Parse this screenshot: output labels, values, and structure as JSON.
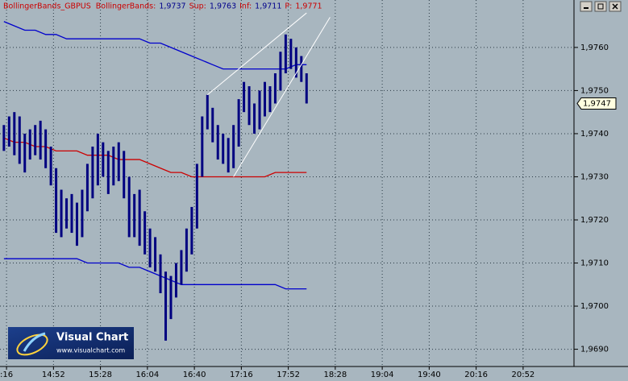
{
  "chart_data": {
    "type": "range-bar",
    "header": [
      {
        "text": "BollingerBands_GBPUS",
        "color": "#cc0000"
      },
      {
        "text": "BollingerBands:",
        "color": "#cc0000"
      },
      {
        "text": "1,9737",
        "color": "#00008b"
      },
      {
        "text": "Sup:",
        "color": "#cc0000"
      },
      {
        "text": "1,9763",
        "color": "#00008b"
      },
      {
        "text": "Inf:",
        "color": "#cc0000"
      },
      {
        "text": "1,9711",
        "color": "#00008b"
      },
      {
        "text": "P:",
        "color": "#cc0000"
      },
      {
        "text": "1,9771",
        "color": "#cc0000"
      }
    ],
    "logo": {
      "title": "Visual Chart",
      "url": "www.visualchart.com"
    },
    "color": "#000080",
    "x": [
      854,
      858,
      862,
      866,
      870,
      874,
      878,
      882,
      886,
      890,
      894,
      898,
      902,
      906,
      910,
      914,
      918,
      922,
      926,
      930,
      934,
      938,
      942,
      946,
      950,
      954,
      958,
      962,
      966,
      970,
      974,
      978,
      982,
      986,
      990,
      994,
      998,
      1002,
      1006,
      1010,
      1014,
      1018,
      1022,
      1026,
      1030,
      1034,
      1038,
      1042,
      1046,
      1050,
      1054,
      1058,
      1062,
      1066,
      1070,
      1074,
      1078,
      1082,
      1086
    ],
    "high": [
      1.9742,
      1.9744,
      1.9745,
      1.9744,
      1.974,
      1.9741,
      1.9742,
      1.9743,
      1.9741,
      1.9737,
      1.9732,
      1.9727,
      1.9725,
      1.9726,
      1.9724,
      1.9727,
      1.9733,
      1.9737,
      1.974,
      1.9738,
      1.9736,
      1.9737,
      1.9738,
      1.9736,
      1.973,
      1.9726,
      1.9727,
      1.9722,
      1.9718,
      1.9716,
      1.9712,
      1.9708,
      1.9707,
      1.971,
      1.9713,
      1.9718,
      1.9723,
      1.9733,
      1.9744,
      1.9749,
      1.9746,
      1.9742,
      1.974,
      1.9739,
      1.9742,
      1.9748,
      1.9752,
      1.9751,
      1.9747,
      1.975,
      1.9752,
      1.9751,
      1.9754,
      1.9759,
      1.9763,
      1.9762,
      1.976,
      1.9758,
      1.9754
    ],
    "low": [
      1.9736,
      1.9737,
      1.9735,
      1.9733,
      1.9731,
      1.9734,
      1.9735,
      1.9734,
      1.9732,
      1.9728,
      1.9717,
      1.9716,
      1.9718,
      1.9717,
      1.9714,
      1.9716,
      1.9722,
      1.9725,
      1.9728,
      1.973,
      1.9726,
      1.9728,
      1.9729,
      1.9725,
      1.9716,
      1.9716,
      1.9714,
      1.9712,
      1.9709,
      1.9708,
      1.9703,
      1.9692,
      1.9697,
      1.9702,
      1.9705,
      1.9708,
      1.9712,
      1.9718,
      1.973,
      1.9741,
      1.9738,
      1.9734,
      1.9733,
      1.9731,
      1.9732,
      1.9737,
      1.9745,
      1.9742,
      1.974,
      1.9741,
      1.9744,
      1.9745,
      1.9747,
      1.975,
      1.9754,
      1.9755,
      1.9753,
      1.9752,
      1.9747
    ],
    "bands": {
      "x": [
        854,
        862,
        870,
        878,
        886,
        894,
        902,
        910,
        918,
        926,
        934,
        942,
        950,
        958,
        966,
        974,
        982,
        990,
        998,
        1006,
        1014,
        1022,
        1030,
        1038,
        1046,
        1054,
        1062,
        1070,
        1078,
        1086
      ],
      "upper": [
        1.9766,
        1.9765,
        1.9764,
        1.9764,
        1.9763,
        1.9763,
        1.9762,
        1.9762,
        1.9762,
        1.9762,
        1.9762,
        1.9762,
        1.9762,
        1.9762,
        1.9761,
        1.9761,
        1.976,
        1.9759,
        1.9758,
        1.9757,
        1.9756,
        1.9755,
        1.9755,
        1.9755,
        1.9755,
        1.9755,
        1.9755,
        1.9755,
        1.9756,
        1.9756
      ],
      "middle": [
        1.9739,
        1.9738,
        1.9738,
        1.9737,
        1.9737,
        1.9736,
        1.9736,
        1.9736,
        1.9735,
        1.9735,
        1.9735,
        1.9734,
        1.9734,
        1.9734,
        1.9733,
        1.9732,
        1.9731,
        1.9731,
        1.973,
        1.973,
        1.973,
        1.973,
        1.973,
        1.973,
        1.973,
        1.973,
        1.9731,
        1.9731,
        1.9731,
        1.9731
      ],
      "lower": [
        1.9711,
        1.9711,
        1.9711,
        1.9711,
        1.9711,
        1.9711,
        1.9711,
        1.9711,
        1.971,
        1.971,
        1.971,
        1.971,
        1.9709,
        1.9709,
        1.9708,
        1.9707,
        1.9706,
        1.9705,
        1.9705,
        1.9705,
        1.9705,
        1.9705,
        1.9705,
        1.9705,
        1.9705,
        1.9705,
        1.9705,
        1.9704,
        1.9704,
        1.9704
      ],
      "upper_color": "#0000cc",
      "middle_color": "#cc0000",
      "lower_color": "#0000cc"
    },
    "trendlines": [
      {
        "x": [
          1010,
          1086
        ],
        "y": [
          1.9749,
          1.9768
        ]
      },
      {
        "x": [
          1030,
          1104
        ],
        "y": [
          1.973,
          1.9767
        ]
      }
    ],
    "trendline_color": "#ffffff",
    "last_price": {
      "value": 1.9747,
      "label": "1,9747"
    },
    "xlim": [
      851,
      1291
    ],
    "ylim": [
      1.9686,
      1.9771
    ],
    "xticks": [
      {
        "value": 856,
        "label": ":16"
      },
      {
        "value": 892,
        "label": "14:52"
      },
      {
        "value": 928,
        "label": "15:28"
      },
      {
        "value": 964,
        "label": "16:04"
      },
      {
        "value": 1000,
        "label": "16:40"
      },
      {
        "value": 1036,
        "label": "17:16"
      },
      {
        "value": 1072,
        "label": "17:52"
      },
      {
        "value": 1108,
        "label": "18:28"
      },
      {
        "value": 1144,
        "label": "19:04"
      },
      {
        "value": 1180,
        "label": "19:40"
      },
      {
        "value": 1216,
        "label": "20:16"
      },
      {
        "value": 1252,
        "label": "20:52"
      }
    ],
    "yticks": [
      {
        "value": 1.969,
        "label": "1,9690"
      },
      {
        "value": 1.97,
        "label": "1,9700"
      },
      {
        "value": 1.971,
        "label": "1,9710"
      },
      {
        "value": 1.972,
        "label": "1,9720"
      },
      {
        "value": 1.973,
        "label": "1,9730"
      },
      {
        "value": 1.974,
        "label": "1,9740"
      },
      {
        "value": 1.975,
        "label": "1,9750"
      },
      {
        "value": 1.976,
        "label": "1,9760"
      }
    ],
    "grid": true
  }
}
